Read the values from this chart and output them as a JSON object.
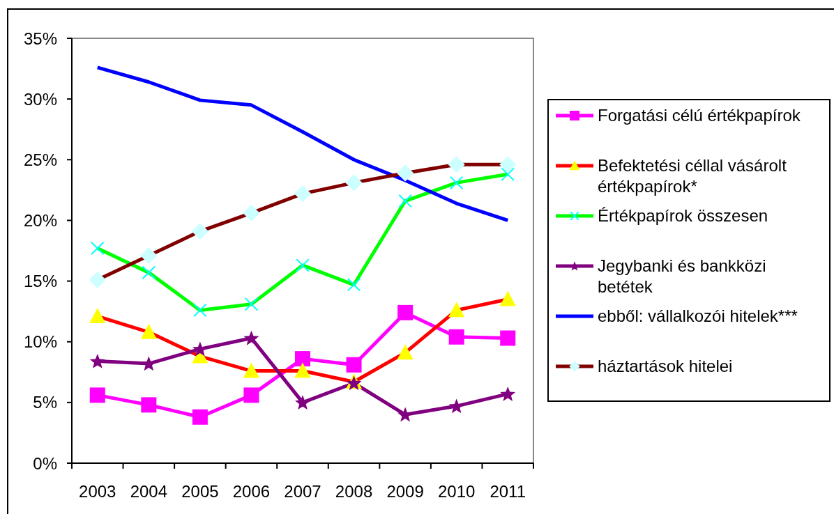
{
  "chart_data": {
    "type": "line",
    "categories": [
      "2003",
      "2004",
      "2005",
      "2006",
      "2007",
      "2008",
      "2009",
      "2010",
      "2011"
    ],
    "ylim": [
      0,
      35
    ],
    "yticks": [
      {
        "value": 0,
        "label": "0%"
      },
      {
        "value": 5,
        "label": "5%"
      },
      {
        "value": 10,
        "label": "10%"
      },
      {
        "value": 15,
        "label": "15%"
      },
      {
        "value": 20,
        "label": "20%"
      },
      {
        "value": 25,
        "label": "25%"
      },
      {
        "value": 30,
        "label": "30%"
      },
      {
        "value": 35,
        "label": "35%"
      }
    ],
    "legend": "right",
    "line_style": "solid",
    "series": [
      {
        "name": "Forgatási célú értékpapírok",
        "color": "#ff00ff",
        "marker": "square",
        "colors": [
          "#ff00ff",
          "#ff00ff",
          "#ff00ff",
          "#ff00ff",
          "#ff00ff",
          "#ff00ff",
          "#ff00ff",
          "#ff00ff",
          "#ff00ff"
        ],
        "values": [
          5.6,
          4.8,
          3.8,
          5.6,
          8.6,
          8.1,
          12.4,
          10.4,
          10.3
        ]
      },
      {
        "name": "Befektetési céllal vásárolt értékpapírok*",
        "color": "#ff0000",
        "marker": "triangle",
        "colors": [
          "#ffff00",
          "#ffff00",
          "#ffff00",
          "#ffff00",
          "#ffff00",
          "#ffff00",
          "#ffff00",
          "#ffff00",
          "#ffff00"
        ],
        "values": [
          12.1,
          10.8,
          8.8,
          7.6,
          7.6,
          6.7,
          9.1,
          12.6,
          13.5
        ]
      },
      {
        "name": "Értékpapírok összesen",
        "color": "#00ff00",
        "marker": "cross",
        "colors": [
          "#00ffff",
          "#00ffff",
          "#00ffff",
          "#00ffff",
          "#00ffff",
          "#00ffff",
          "#00ffff",
          "#00ffff",
          "#00ffff"
        ],
        "values": [
          17.7,
          15.7,
          12.6,
          13.1,
          16.3,
          14.7,
          21.6,
          23.1,
          23.8
        ]
      },
      {
        "name": "Jegybanki és bankközi betétek",
        "color": "#800080",
        "marker": "star",
        "colors": [
          "#800080",
          "#800080",
          "#800080",
          "#800080",
          "#800080",
          "#800080",
          "#800080",
          "#800080",
          "#800080"
        ],
        "values": [
          8.4,
          8.2,
          9.4,
          10.3,
          5.0,
          6.6,
          4.0,
          4.7,
          5.7
        ]
      },
      {
        "name": "ebből: vállalkozói hitelek***",
        "color": "#0000ff",
        "values": [
          32.6,
          31.4,
          29.9,
          29.5,
          27.3,
          25.0,
          23.3,
          21.4,
          20.0
        ]
      },
      {
        "name": "háztartások hitelei",
        "color": "#800000",
        "marker": "diamond",
        "colors": [
          "#ccffff",
          "#ccffff",
          "#ccffff",
          "#ccffff",
          "#ccffff",
          "#ccffff",
          "#ccffff",
          "#ccffff",
          "#ccffff"
        ],
        "values": [
          15.1,
          17.1,
          19.1,
          20.6,
          22.2,
          23.1,
          23.9,
          24.6,
          24.6
        ]
      }
    ]
  }
}
